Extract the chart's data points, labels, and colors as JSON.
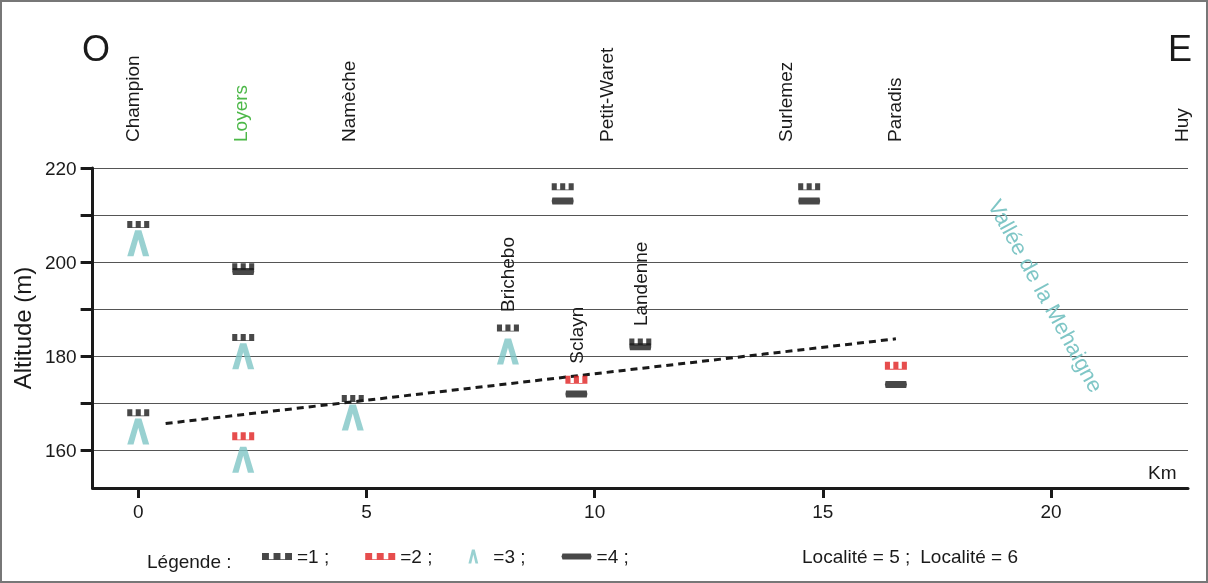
{
  "chart_data": {
    "type": "scatter",
    "xlabel": "Km",
    "ylabel": "Altitude (m)",
    "legend_title": "Légende :",
    "xlim": [
      -1,
      23
    ],
    "xticks": [
      0,
      5,
      10,
      15,
      20
    ],
    "ylim": [
      152,
      220
    ],
    "yticks": [
      160,
      {
        "value": 170,
        "label": null
      },
      180,
      {
        "value": 190,
        "label": null
      },
      200,
      {
        "value": 210,
        "label": null
      },
      220
    ],
    "grid": "y",
    "legend": "bottom",
    "series": [
      {
        "name": "=1 ;",
        "color": "#1a1a1a",
        "x": [
          0,
          0,
          2.3,
          2.3,
          4.7,
          8.1,
          9.3,
          11.0,
          14.7
        ],
        "values": [
          208,
          168,
          199,
          184,
          171,
          186,
          216,
          183,
          216
        ]
      },
      {
        "name": "=2 ;",
        "color": "#e02020",
        "x": [
          2.3,
          9.6,
          16.6
        ],
        "values": [
          163,
          175,
          178
        ]
      },
      {
        "name": "=3 ;",
        "color": "#7fc6c6",
        "x": [
          0,
          0,
          2.3,
          2.3,
          4.7,
          8.1
        ],
        "values": [
          204,
          164,
          180,
          158,
          167,
          181
        ]
      },
      {
        "name": "=4 ;",
        "color": "#1a1a1a",
        "x": [
          2.3,
          9.3,
          9.6,
          11.0,
          14.7,
          16.6
        ],
        "values": [
          198,
          213,
          172,
          182,
          213,
          174
        ]
      },
      {
        "type": "line",
        "color": "#1a1a1a",
        "line_style": "dashed",
        "marker": "none",
        "x": [
          0.6,
          16.6
        ],
        "values": [
          165.7,
          183.7
        ]
      }
    ],
    "annotations": [
      "O",
      "E",
      "Vallée de la Mehaigne",
      "Champion",
      "Loyers",
      "Namèche",
      "Petit-Waret",
      "Surlemez",
      "Paradis",
      "Huy",
      {
        "text": "Brichebo",
        "x": 8.1,
        "y": 186
      },
      {
        "text": "Sclayn",
        "x": 9.6,
        "y": 175
      },
      {
        "text": "Landenne",
        "x": 11.0,
        "y": 183
      },
      "Localité = 5 ;",
      "Localité = 6"
    ]
  }
}
